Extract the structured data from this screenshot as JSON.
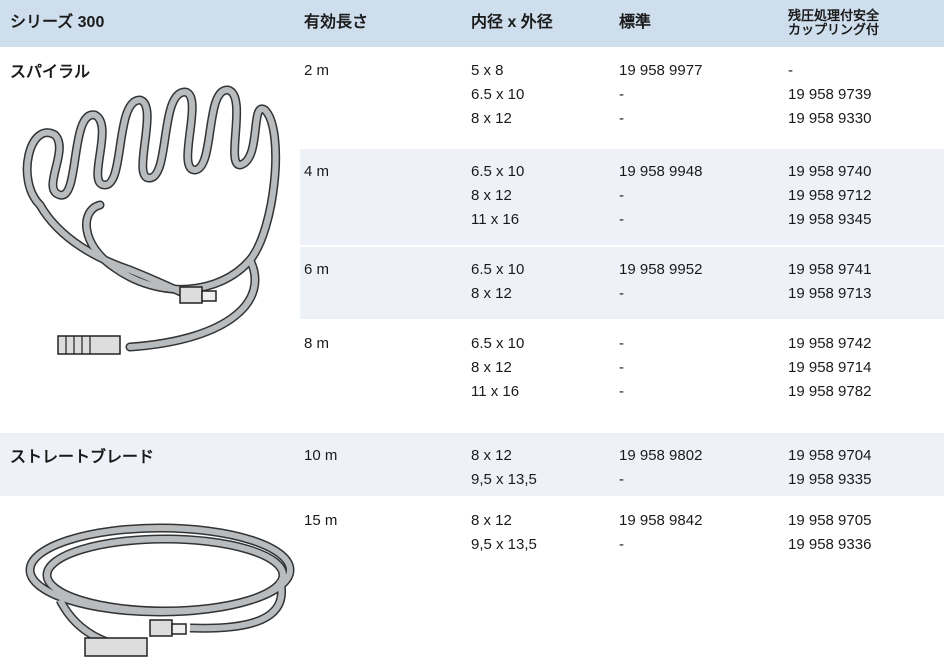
{
  "header": [
    "シリーズ 300",
    "有効長さ",
    "内径 x 外径",
    "標準",
    [
      "残圧処理付安全",
      "カップリング付"
    ]
  ],
  "groups": [
    "スパイラル",
    "ストレートブレード"
  ],
  "rows": [
    {
      "length": "2 m",
      "sizes": [
        "5 x 8",
        "6.5 x 10",
        "8 x 12"
      ],
      "standard": [
        "19 958 9977",
        "-",
        "-"
      ],
      "safety": [
        "-",
        "19 958 9739",
        "19 958 9330"
      ]
    },
    {
      "length": "4 m",
      "sizes": [
        "6.5 x 10",
        "8 x 12",
        "11 x 16"
      ],
      "standard": [
        "19 958 9948",
        "-",
        "-"
      ],
      "safety": [
        "19 958 9740",
        "19 958 9712",
        "19 958 9345"
      ]
    },
    {
      "length": "6 m",
      "sizes": [
        "6.5 x 10",
        "8 x 12"
      ],
      "standard": [
        "19 958 9952",
        "-"
      ],
      "safety": [
        "19 958 9741",
        "19 958 9713"
      ]
    },
    {
      "length": "8 m",
      "sizes": [
        "6.5 x 10",
        "8 x 12",
        "11 x 16"
      ],
      "standard": [
        "-",
        "-",
        "-"
      ],
      "safety": [
        "19 958 9742",
        "19 958 9714",
        "19 958 9782"
      ]
    },
    {
      "length": "10 m",
      "sizes": [
        "8 x 12",
        "9,5 x 13,5"
      ],
      "standard": [
        "19 958 9802",
        "-"
      ],
      "safety": [
        "19 958 9704",
        "19 958 9335"
      ]
    },
    {
      "length": "15 m",
      "sizes": [
        "8 x 12",
        "9,5 x 13,5"
      ],
      "standard": [
        "19 958 9842",
        "-"
      ],
      "safety": [
        "19 958 9705",
        "19 958 9336"
      ]
    }
  ]
}
